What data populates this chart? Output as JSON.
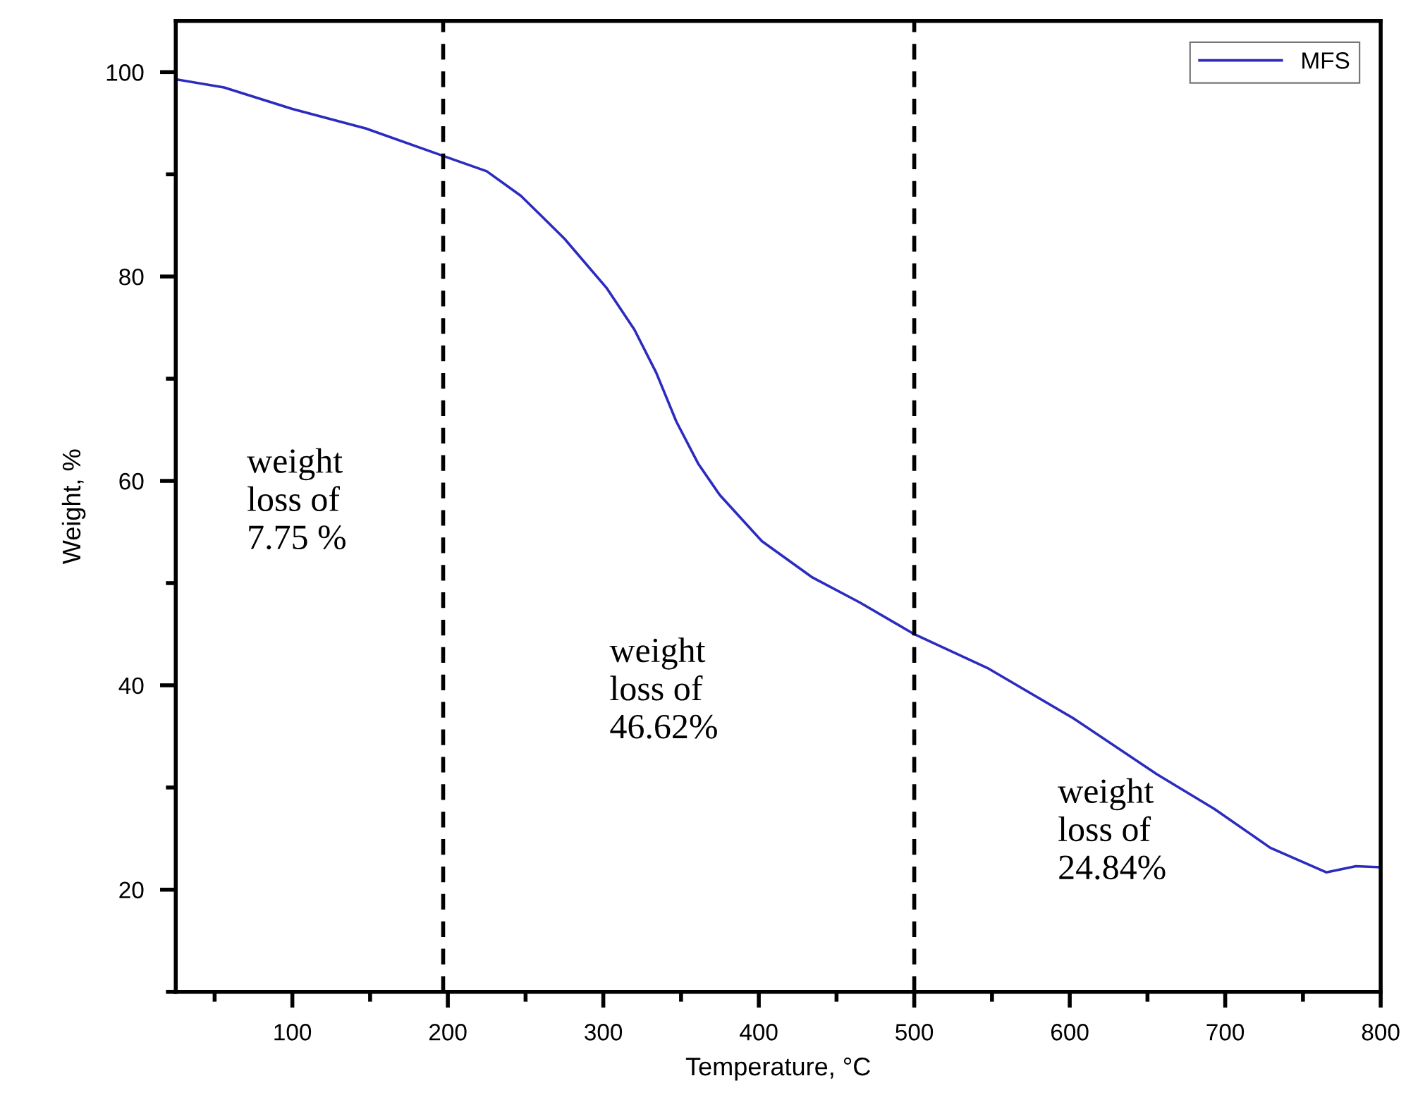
{
  "chart_data": {
    "type": "line",
    "xlabel": "Temperature, °C",
    "ylabel": "Weight, %",
    "x": [
      25,
      56,
      100,
      147,
      197,
      225,
      247,
      275,
      302,
      320,
      334,
      347,
      361,
      375,
      402,
      434,
      465,
      500,
      547,
      602,
      656,
      693,
      729,
      765,
      784,
      800
    ],
    "series": [
      {
        "name": "MFS",
        "color": "#2b2bc0",
        "values": [
          99.3,
          98.5,
          96.4,
          94.5,
          91.8,
          90.3,
          87.9,
          83.7,
          78.9,
          74.8,
          70.6,
          65.8,
          61.7,
          58.6,
          54.1,
          50.6,
          48.1,
          45.0,
          41.7,
          36.8,
          31.3,
          27.9,
          24.1,
          21.7,
          22.3,
          22.2
        ]
      }
    ],
    "xlim": [
      25,
      800
    ],
    "ylim": [
      10,
      105
    ],
    "xticks": [
      {
        "value": 50,
        "label": null
      },
      100,
      {
        "value": 150,
        "label": null
      },
      200,
      {
        "value": 250,
        "label": null
      },
      300,
      {
        "value": 350,
        "label": null
      },
      400,
      {
        "value": 450,
        "label": null
      },
      500,
      {
        "value": 550,
        "label": null
      },
      600,
      {
        "value": 650,
        "label": null
      },
      700,
      {
        "value": 750,
        "label": null
      },
      800
    ],
    "yticks": [
      {
        "value": 10,
        "label": null
      },
      20,
      {
        "value": 30,
        "label": null
      },
      40,
      {
        "value": 50,
        "label": null
      },
      60,
      {
        "value": 70,
        "label": null
      },
      80,
      {
        "value": 90,
        "label": null
      },
      100
    ],
    "ref_lines": [
      {
        "axis": "x",
        "value": 197,
        "color": "#000000",
        "line_style": "dashed"
      },
      {
        "axis": "x",
        "value": 500,
        "color": "#000000",
        "line_style": "dashed"
      }
    ],
    "annotations": [
      "weight\nloss of\n7.75 %",
      "weight\nloss of\n46.62%",
      "weight\nloss of\n24.84%"
    ],
    "legend": "top right",
    "grid": false,
    "marker": "none",
    "line_style": "solid"
  }
}
